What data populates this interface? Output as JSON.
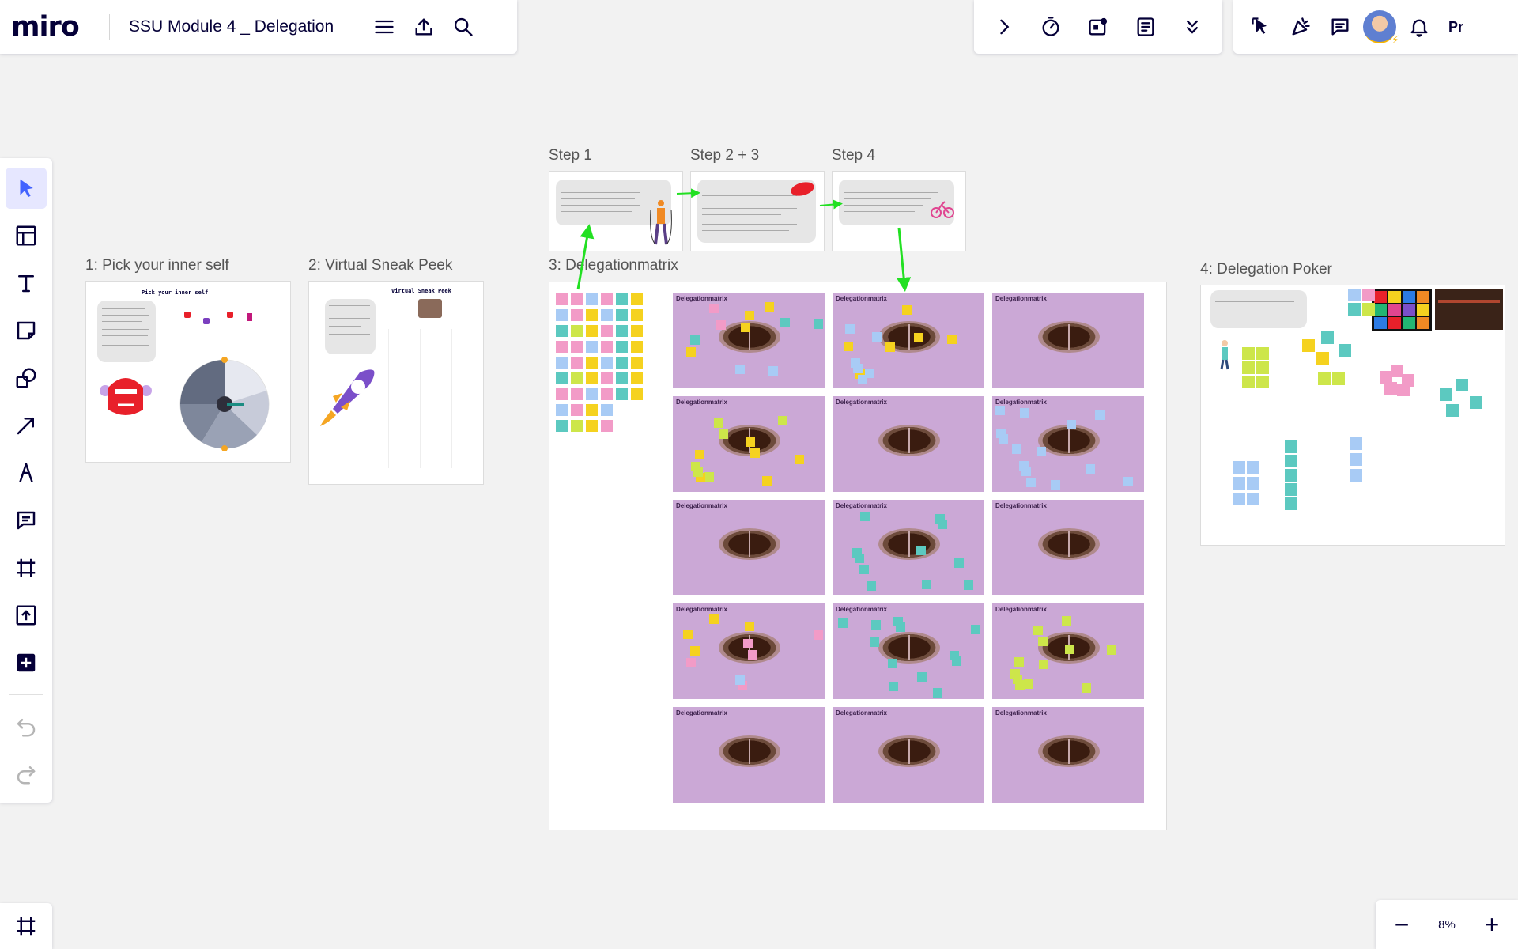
{
  "app": {
    "logo": "miro",
    "board_title": "SSU Module 4 _ Delegation"
  },
  "header": {
    "left_icons": [
      "menu-icon",
      "upload-icon",
      "search-icon"
    ],
    "mid_icons": [
      "chevron-right-icon",
      "timer-icon",
      "sticky-add-icon",
      "notes-icon",
      "double-chevron-down-icon"
    ],
    "right_icons": [
      "cursor-follow-icon",
      "celebrate-icon",
      "comment-icon",
      "avatar",
      "bell-icon"
    ],
    "present_label": "Pr"
  },
  "toolbar": {
    "tools": [
      "select",
      "templates",
      "text",
      "sticky-note",
      "shapes",
      "connection-line",
      "pen",
      "comment",
      "frame",
      "upload",
      "more-apps"
    ],
    "undo_label": "undo",
    "redo_label": "redo"
  },
  "zoom": {
    "value": "8%",
    "minus": "−",
    "plus": "+"
  },
  "canvas": {
    "frames": [
      {
        "id": "pick",
        "label": "1: Pick your inner self",
        "inner_title": "Pick your inner self"
      },
      {
        "id": "sneak",
        "label": "2: Virtual Sneak Peek",
        "inner_title": "Virtual Sneak Peek"
      },
      {
        "id": "step1",
        "label": "Step 1"
      },
      {
        "id": "step23",
        "label": "Step 2 + 3"
      },
      {
        "id": "step4",
        "label": "Step 4"
      },
      {
        "id": "matrix",
        "label": "3: Delegationmatrix",
        "slide_title": "Delegationmatrix"
      },
      {
        "id": "poker",
        "label": "4: Delegation Poker"
      }
    ]
  },
  "colors": {
    "accent": "#4262ff",
    "arrow_green": "#22e022",
    "matrix_bg": "#cba8d6",
    "sticky_yellow": "#f5d21f",
    "sticky_blue": "#a8cbf5",
    "sticky_pink": "#f29bc7",
    "sticky_teal": "#5cc9c0",
    "sticky_lime": "#cde64a"
  }
}
